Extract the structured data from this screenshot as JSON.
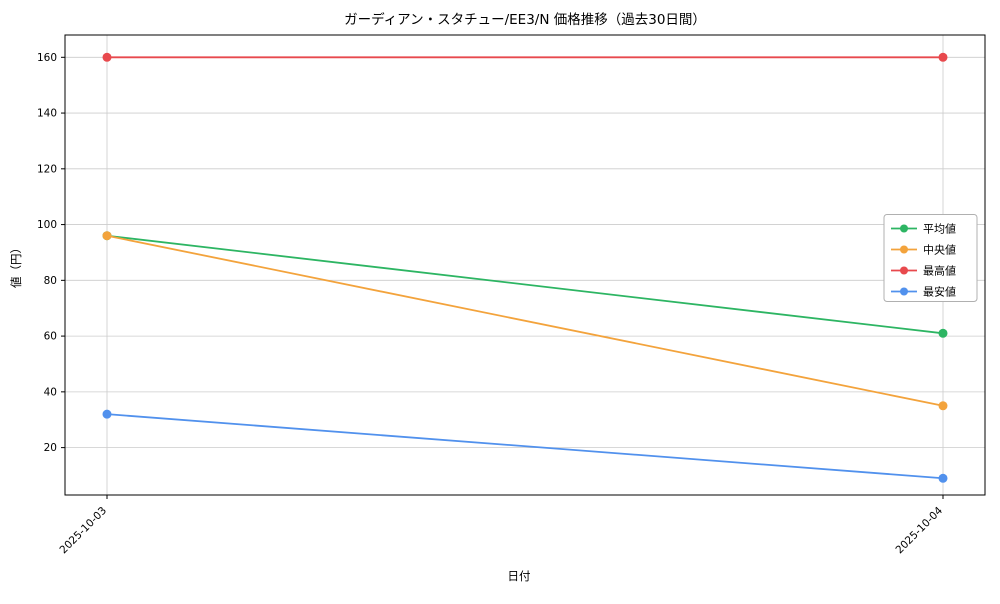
{
  "chart_data": {
    "type": "line",
    "title": "ガーディアン・スタチュー/EE3/N 価格推移（過去30日間）",
    "xlabel": "日付",
    "ylabel": "値（円）",
    "x": [
      "2025-10-03",
      "2025-10-04"
    ],
    "series": [
      {
        "name": "平均値",
        "color": "#2db563",
        "values": [
          96,
          61
        ]
      },
      {
        "name": "中央値",
        "color": "#f3a33c",
        "values": [
          96,
          35
        ]
      },
      {
        "name": "最高値",
        "color": "#e8494d",
        "values": [
          160,
          160
        ]
      },
      {
        "name": "最安値",
        "color": "#5191ed",
        "values": [
          32,
          9
        ]
      }
    ],
    "yticks": [
      20,
      40,
      60,
      80,
      100,
      120,
      140,
      160
    ],
    "ylim": [
      3,
      168
    ],
    "grid": true,
    "grid_color": "#cccccc",
    "axis_color": "#000000",
    "legend_position": "center right",
    "legend_border_color": "#b0b0b0"
  }
}
